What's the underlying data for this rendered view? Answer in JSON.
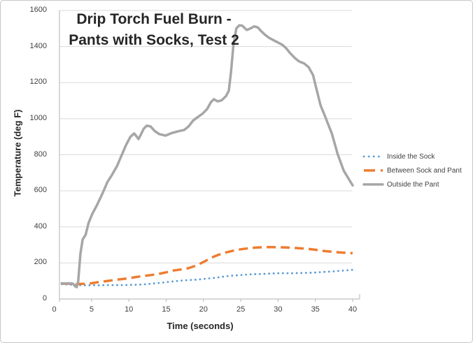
{
  "colors": {
    "gridline": "#D9D9D9",
    "axis": "#BFBFBF",
    "tick_text": "#404040",
    "title_text": "#262626",
    "series_blue": "#5B9BD5",
    "series_orange": "#ED7D31",
    "series_gray": "#A6A6A6"
  },
  "chart_data": {
    "type": "line",
    "title": "Drip Torch Fuel Burn - Pants with Socks, Test 2",
    "title_lines": [
      "Drip Torch Fuel Burn -",
      "Pants with Socks, Test 2"
    ],
    "xlabel": "Time (seconds)",
    "ylabel": "Temperature (deg F)",
    "xlim": [
      0,
      40
    ],
    "ylim": [
      0,
      1600
    ],
    "x_ticks": [
      0,
      5,
      10,
      15,
      20,
      25,
      30,
      35,
      40
    ],
    "y_ticks": [
      0,
      200,
      400,
      600,
      800,
      1000,
      1200,
      1400,
      1600
    ],
    "grid": "horizontal",
    "legend_position": "right",
    "series": [
      {
        "name": "Inside the Sock",
        "color": "#5B9BD5",
        "style": "dotted",
        "points": [
          [
            1,
            82
          ],
          [
            2,
            80
          ],
          [
            3,
            77
          ],
          [
            4,
            76
          ],
          [
            5,
            76
          ],
          [
            6,
            76
          ],
          [
            7,
            77
          ],
          [
            8,
            77
          ],
          [
            9,
            77
          ],
          [
            10,
            78
          ],
          [
            11,
            79
          ],
          [
            12,
            81
          ],
          [
            13,
            85
          ],
          [
            14,
            89
          ],
          [
            15,
            93
          ],
          [
            16,
            98
          ],
          [
            17,
            102
          ],
          [
            18,
            105
          ],
          [
            19,
            107
          ],
          [
            20,
            111
          ],
          [
            21,
            115
          ],
          [
            22,
            120
          ],
          [
            23,
            126
          ],
          [
            24,
            130
          ],
          [
            25,
            133
          ],
          [
            26,
            136
          ],
          [
            27,
            138
          ],
          [
            28,
            139
          ],
          [
            29,
            141
          ],
          [
            30,
            143
          ],
          [
            31,
            143
          ],
          [
            32,
            143
          ],
          [
            33,
            144
          ],
          [
            34,
            145
          ],
          [
            35,
            147
          ],
          [
            36,
            150
          ],
          [
            37,
            152
          ],
          [
            38,
            155
          ],
          [
            39,
            158
          ],
          [
            40,
            162
          ]
        ]
      },
      {
        "name": "Between Sock and Pant",
        "color": "#ED7D31",
        "style": "dashed",
        "points": [
          [
            1,
            85
          ],
          [
            2,
            85
          ],
          [
            3,
            83
          ],
          [
            4,
            84
          ],
          [
            5,
            87
          ],
          [
            6,
            94
          ],
          [
            7,
            99
          ],
          [
            8,
            105
          ],
          [
            9,
            110
          ],
          [
            10,
            115
          ],
          [
            11,
            122
          ],
          [
            12,
            128
          ],
          [
            13,
            133
          ],
          [
            14,
            139
          ],
          [
            15,
            148
          ],
          [
            16,
            158
          ],
          [
            17,
            164
          ],
          [
            18,
            171
          ],
          [
            19,
            185
          ],
          [
            20,
            205
          ],
          [
            21,
            228
          ],
          [
            22,
            245
          ],
          [
            23,
            258
          ],
          [
            24,
            268
          ],
          [
            25,
            276
          ],
          [
            26,
            281
          ],
          [
            27,
            285
          ],
          [
            28,
            287
          ],
          [
            29,
            288
          ],
          [
            30,
            287
          ],
          [
            31,
            286
          ],
          [
            32,
            284
          ],
          [
            33,
            281
          ],
          [
            34,
            278
          ],
          [
            35,
            273
          ],
          [
            36,
            267
          ],
          [
            37,
            263
          ],
          [
            38,
            259
          ],
          [
            39,
            256
          ],
          [
            40,
            254
          ]
        ]
      },
      {
        "name": "Outside the Pant",
        "color": "#A6A6A6",
        "style": "solid",
        "points": [
          [
            1,
            87
          ],
          [
            1.5,
            86
          ],
          [
            2,
            87
          ],
          [
            2.5,
            85
          ],
          [
            2.8,
            70
          ],
          [
            3,
            66
          ],
          [
            3.2,
            95
          ],
          [
            3.5,
            250
          ],
          [
            3.8,
            330
          ],
          [
            4.2,
            356
          ],
          [
            4.6,
            422
          ],
          [
            5.1,
            473
          ],
          [
            5.7,
            519
          ],
          [
            6.5,
            589
          ],
          [
            7.1,
            647
          ],
          [
            7.7,
            686
          ],
          [
            8.4,
            736
          ],
          [
            9,
            794
          ],
          [
            9.6,
            852
          ],
          [
            10.2,
            899
          ],
          [
            10.7,
            918
          ],
          [
            11.3,
            887
          ],
          [
            12,
            945
          ],
          [
            12.4,
            961
          ],
          [
            12.9,
            957
          ],
          [
            13.5,
            930
          ],
          [
            14.1,
            914
          ],
          [
            14.9,
            906
          ],
          [
            15.8,
            921
          ],
          [
            16.7,
            931
          ],
          [
            17.4,
            937
          ],
          [
            18,
            957
          ],
          [
            18.6,
            989
          ],
          [
            19.2,
            1008
          ],
          [
            19.9,
            1028
          ],
          [
            20.5,
            1054
          ],
          [
            21,
            1092
          ],
          [
            21.4,
            1108
          ],
          [
            21.9,
            1096
          ],
          [
            22.4,
            1101
          ],
          [
            23,
            1124
          ],
          [
            23.4,
            1155
          ],
          [
            23.7,
            1260
          ],
          [
            24,
            1400
          ],
          [
            24.4,
            1500
          ],
          [
            24.8,
            1518
          ],
          [
            25.2,
            1516
          ],
          [
            25.8,
            1492
          ],
          [
            26.3,
            1500
          ],
          [
            26.8,
            1512
          ],
          [
            27.3,
            1506
          ],
          [
            27.7,
            1487
          ],
          [
            28.2,
            1467
          ],
          [
            28.8,
            1448
          ],
          [
            29.4,
            1435
          ],
          [
            30,
            1422
          ],
          [
            30.6,
            1409
          ],
          [
            31.1,
            1390
          ],
          [
            31.6,
            1364
          ],
          [
            32.2,
            1338
          ],
          [
            32.8,
            1318
          ],
          [
            33.5,
            1306
          ],
          [
            34.1,
            1286
          ],
          [
            34.7,
            1241
          ],
          [
            35,
            1189
          ],
          [
            35.7,
            1073
          ],
          [
            36.1,
            1034
          ],
          [
            37.2,
            918
          ],
          [
            38,
            802
          ],
          [
            38.8,
            712
          ],
          [
            40,
            630
          ]
        ]
      }
    ]
  }
}
